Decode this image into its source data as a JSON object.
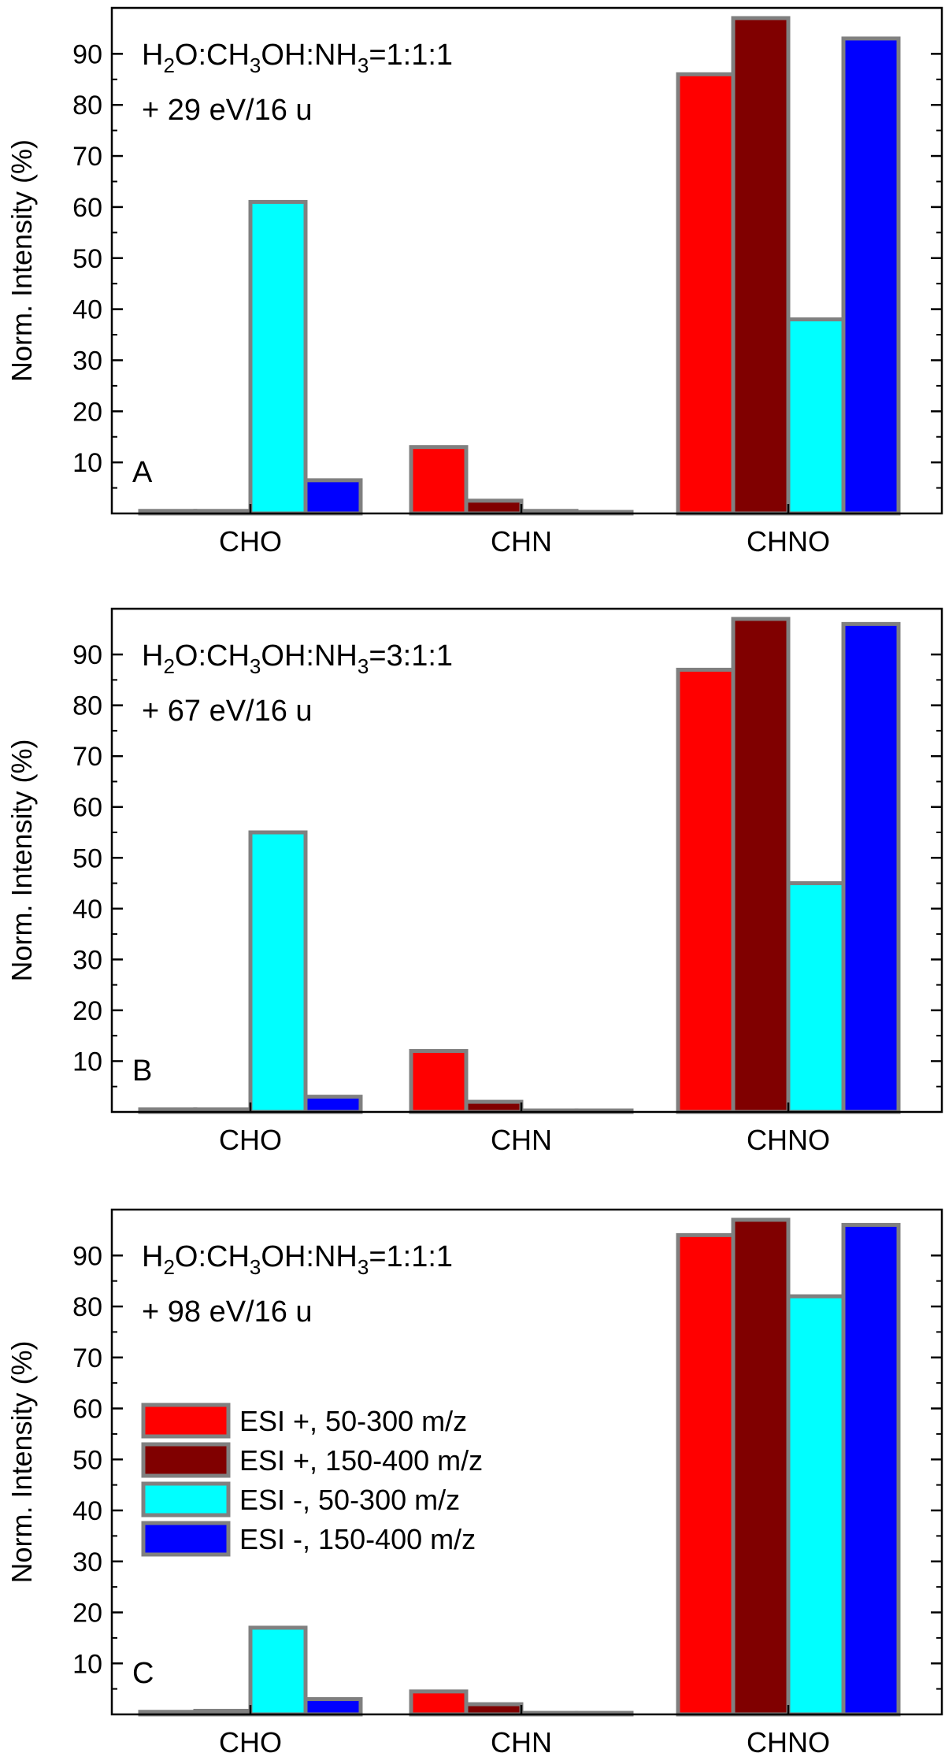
{
  "chart_data": [
    {
      "type": "bar",
      "panel": "A",
      "categories": [
        "CHO",
        "CHN",
        "CHNO"
      ],
      "series": [
        {
          "name": "ESI +, 50-300 m/z",
          "color": "#ff0000",
          "values": [
            0.5,
            13,
            86
          ]
        },
        {
          "name": "ESI +, 150-400 m/z",
          "color": "#800000",
          "values": [
            0.5,
            2.5,
            97
          ]
        },
        {
          "name": "ESI -, 50-300 m/z",
          "color": "#00ffff",
          "values": [
            61,
            0.5,
            38
          ]
        },
        {
          "name": "ESI -, 150-400 m/z",
          "color": "#0000ff",
          "values": [
            6.5,
            0.3,
            93
          ]
        }
      ],
      "annotation": {
        "formula_prefix": "H",
        "formula_sub1": "2",
        "formula_mid1": "O:CH",
        "formula_sub2": "3",
        "formula_mid2": "OH:NH",
        "formula_sub3": "3",
        "formula_ratio": "=1:1:1",
        "energy": "+ 29 eV/16 u"
      },
      "ylabel": "Norm. Intensity (%)",
      "ylim": [
        0,
        99
      ],
      "yticks": [
        10,
        20,
        30,
        40,
        50,
        60,
        70,
        80,
        90
      ]
    },
    {
      "type": "bar",
      "panel": "B",
      "categories": [
        "CHO",
        "CHN",
        "CHNO"
      ],
      "series": [
        {
          "name": "ESI +, 50-300 m/z",
          "color": "#ff0000",
          "values": [
            0.5,
            12,
            87
          ]
        },
        {
          "name": "ESI +, 150-400 m/z",
          "color": "#800000",
          "values": [
            0.5,
            2,
            97
          ]
        },
        {
          "name": "ESI -, 50-300 m/z",
          "color": "#00ffff",
          "values": [
            55,
            0.3,
            45
          ]
        },
        {
          "name": "ESI -, 150-400 m/z",
          "color": "#0000ff",
          "values": [
            3,
            0.3,
            96
          ]
        }
      ],
      "annotation": {
        "formula_prefix": "H",
        "formula_sub1": "2",
        "formula_mid1": "O:CH",
        "formula_sub2": "3",
        "formula_mid2": "OH:NH",
        "formula_sub3": "3",
        "formula_ratio": "=3:1:1",
        "energy": "+ 67 eV/16 u"
      },
      "ylabel": "Norm. Intensity (%)",
      "ylim": [
        0,
        99
      ],
      "yticks": [
        10,
        20,
        30,
        40,
        50,
        60,
        70,
        80,
        90
      ]
    },
    {
      "type": "bar",
      "panel": "C",
      "categories": [
        "CHO",
        "CHN",
        "CHNO"
      ],
      "series": [
        {
          "name": "ESI +, 50-300 m/z",
          "color": "#ff0000",
          "values": [
            0.5,
            4.5,
            94
          ]
        },
        {
          "name": "ESI +, 150-400 m/z",
          "color": "#800000",
          "values": [
            0.7,
            2,
            97
          ]
        },
        {
          "name": "ESI -, 50-300 m/z",
          "color": "#00ffff",
          "values": [
            17,
            0.3,
            82
          ]
        },
        {
          "name": "ESI -, 150-400 m/z",
          "color": "#0000ff",
          "values": [
            3,
            0.3,
            96
          ]
        }
      ],
      "annotation": {
        "formula_prefix": "H",
        "formula_sub1": "2",
        "formula_mid1": "O:CH",
        "formula_sub2": "3",
        "formula_mid2": "OH:NH",
        "formula_sub3": "3",
        "formula_ratio": "=1:1:1",
        "energy": "+ 98 eV/16 u"
      },
      "ylabel": "Norm. Intensity (%)",
      "ylim": [
        0,
        99
      ],
      "yticks": [
        10,
        20,
        30,
        40,
        50,
        60,
        70,
        80,
        90
      ],
      "legend": {
        "placement": "left",
        "entries": [
          "ESI +, 50-300 m/z",
          "ESI +, 150-400 m/z",
          "ESI -, 50-300 m/z",
          "ESI -, 150-400 m/z"
        ]
      }
    }
  ],
  "style": {
    "bar_outline": "#808080",
    "axis_color": "#000000"
  }
}
